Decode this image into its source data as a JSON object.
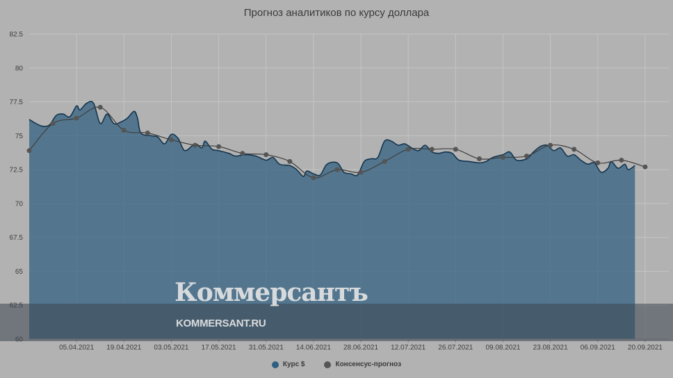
{
  "chart_data": {
    "type": "area",
    "title": "Прогноз аналитиков по курсу доллара",
    "xlabel": "",
    "ylabel": "",
    "ylim": [
      60,
      82.5
    ],
    "yticks": [
      60,
      62.5,
      65,
      67.5,
      70,
      72.5,
      75,
      77.5,
      80,
      82.5
    ],
    "ytick_labels": [
      "60",
      "62.5",
      "65",
      "67.5",
      "70",
      "72.5",
      "75",
      "77.5",
      "80",
      "82.5"
    ],
    "xlim": [
      "2021-03-22",
      "2021-09-27"
    ],
    "xticks": [
      "2021-04-05",
      "2021-04-19",
      "2021-05-03",
      "2021-05-17",
      "2021-05-31",
      "2021-06-14",
      "2021-06-28",
      "2021-07-12",
      "2021-07-26",
      "2021-08-09",
      "2021-08-23",
      "2021-09-06",
      "2021-09-20"
    ],
    "xtick_labels": [
      "05.04.2021",
      "19.04.2021",
      "03.05.2021",
      "17.05.2021",
      "31.05.2021",
      "14.06.2021",
      "28.06.2021",
      "12.07.2021",
      "26.07.2021",
      "09.08.2021",
      "23.08.2021",
      "06.09.2021",
      "20.09.2021"
    ],
    "grid": true,
    "legend_position": "bottom",
    "series": [
      {
        "name": "Курс $",
        "color": "#2e5e80",
        "kind": "area",
        "points": [
          [
            "2021-03-22",
            76.2
          ],
          [
            "2021-03-24",
            75.9
          ],
          [
            "2021-03-26",
            75.7
          ],
          [
            "2021-03-28",
            75.8
          ],
          [
            "2021-03-30",
            76.5
          ],
          [
            "2021-04-01",
            76.6
          ],
          [
            "2021-04-03",
            76.4
          ],
          [
            "2021-04-05",
            77.2
          ],
          [
            "2021-04-06",
            76.9
          ],
          [
            "2021-04-08",
            77.4
          ],
          [
            "2021-04-10",
            77.4
          ],
          [
            "2021-04-12",
            75.9
          ],
          [
            "2021-04-14",
            76.6
          ],
          [
            "2021-04-16",
            75.9
          ],
          [
            "2021-04-18",
            76.0
          ],
          [
            "2021-04-20",
            76.3
          ],
          [
            "2021-04-22",
            76.8
          ],
          [
            "2021-04-23",
            76.3
          ],
          [
            "2021-04-24",
            75.2
          ],
          [
            "2021-04-27",
            75.0
          ],
          [
            "2021-04-29",
            74.9
          ],
          [
            "2021-05-01",
            74.4
          ],
          [
            "2021-05-03",
            75.1
          ],
          [
            "2021-05-05",
            74.8
          ],
          [
            "2021-05-07",
            73.9
          ],
          [
            "2021-05-10",
            74.4
          ],
          [
            "2021-05-12",
            74.1
          ],
          [
            "2021-05-13",
            74.6
          ],
          [
            "2021-05-15",
            74.0
          ],
          [
            "2021-05-17",
            73.9
          ],
          [
            "2021-05-20",
            73.7
          ],
          [
            "2021-05-22",
            73.5
          ],
          [
            "2021-05-25",
            73.6
          ],
          [
            "2021-05-28",
            73.5
          ],
          [
            "2021-05-31",
            73.2
          ],
          [
            "2021-06-02",
            73.4
          ],
          [
            "2021-06-04",
            72.9
          ],
          [
            "2021-06-07",
            72.8
          ],
          [
            "2021-06-09",
            72.5
          ],
          [
            "2021-06-11",
            72.0
          ],
          [
            "2021-06-12",
            72.4
          ],
          [
            "2021-06-14",
            72.2
          ],
          [
            "2021-06-16",
            72.1
          ],
          [
            "2021-06-18",
            72.9
          ],
          [
            "2021-06-21",
            73.0
          ],
          [
            "2021-06-23",
            72.3
          ],
          [
            "2021-06-25",
            72.2
          ],
          [
            "2021-06-27",
            72.1
          ],
          [
            "2021-06-29",
            73.1
          ],
          [
            "2021-07-01",
            73.3
          ],
          [
            "2021-07-03",
            73.4
          ],
          [
            "2021-07-05",
            74.6
          ],
          [
            "2021-07-07",
            74.6
          ],
          [
            "2021-07-09",
            74.3
          ],
          [
            "2021-07-11",
            74.4
          ],
          [
            "2021-07-13",
            74.1
          ],
          [
            "2021-07-15",
            73.9
          ],
          [
            "2021-07-17",
            74.3
          ],
          [
            "2021-07-19",
            73.8
          ],
          [
            "2021-07-21",
            73.7
          ],
          [
            "2021-07-23",
            73.8
          ],
          [
            "2021-07-25",
            73.7
          ],
          [
            "2021-07-27",
            73.2
          ],
          [
            "2021-07-30",
            73.1
          ],
          [
            "2021-08-02",
            73.0
          ],
          [
            "2021-08-04",
            73.1
          ],
          [
            "2021-08-06",
            73.4
          ],
          [
            "2021-08-09",
            73.6
          ],
          [
            "2021-08-11",
            73.8
          ],
          [
            "2021-08-13",
            73.2
          ],
          [
            "2021-08-16",
            73.3
          ],
          [
            "2021-08-18",
            73.8
          ],
          [
            "2021-08-20",
            74.2
          ],
          [
            "2021-08-22",
            74.3
          ],
          [
            "2021-08-24",
            73.9
          ],
          [
            "2021-08-26",
            74.1
          ],
          [
            "2021-08-28",
            73.5
          ],
          [
            "2021-08-30",
            73.6
          ],
          [
            "2021-09-01",
            73.2
          ],
          [
            "2021-09-03",
            72.9
          ],
          [
            "2021-09-05",
            73.0
          ],
          [
            "2021-09-07",
            72.3
          ],
          [
            "2021-09-09",
            72.6
          ],
          [
            "2021-09-10",
            73.1
          ],
          [
            "2021-09-12",
            72.6
          ],
          [
            "2021-09-14",
            72.9
          ],
          [
            "2021-09-15",
            72.5
          ],
          [
            "2021-09-17",
            72.8
          ]
        ]
      },
      {
        "name": "Консенсус-прогноз",
        "color": "#3d3d3d",
        "kind": "line-markers",
        "points": [
          [
            "2021-03-22",
            73.9
          ],
          [
            "2021-03-29",
            75.9
          ],
          [
            "2021-04-05",
            76.3
          ],
          [
            "2021-04-12",
            77.1
          ],
          [
            "2021-04-19",
            75.4
          ],
          [
            "2021-04-26",
            75.2
          ],
          [
            "2021-05-03",
            74.7
          ],
          [
            "2021-05-10",
            74.3
          ],
          [
            "2021-05-17",
            74.2
          ],
          [
            "2021-05-24",
            73.7
          ],
          [
            "2021-05-31",
            73.6
          ],
          [
            "2021-06-07",
            73.1
          ],
          [
            "2021-06-14",
            71.9
          ],
          [
            "2021-06-21",
            72.5
          ],
          [
            "2021-06-28",
            72.3
          ],
          [
            "2021-07-05",
            73.1
          ],
          [
            "2021-07-12",
            74.0
          ],
          [
            "2021-07-19",
            74.0
          ],
          [
            "2021-07-26",
            74.0
          ],
          [
            "2021-08-02",
            73.3
          ],
          [
            "2021-08-09",
            73.4
          ],
          [
            "2021-08-16",
            73.5
          ],
          [
            "2021-08-23",
            74.3
          ],
          [
            "2021-08-30",
            74.0
          ],
          [
            "2021-09-06",
            73.0
          ],
          [
            "2021-09-13",
            73.2
          ],
          [
            "2021-09-20",
            72.7
          ]
        ]
      }
    ]
  },
  "watermark": {
    "logo": "Коммерсантъ",
    "url": "KOMMERSANT.RU"
  }
}
